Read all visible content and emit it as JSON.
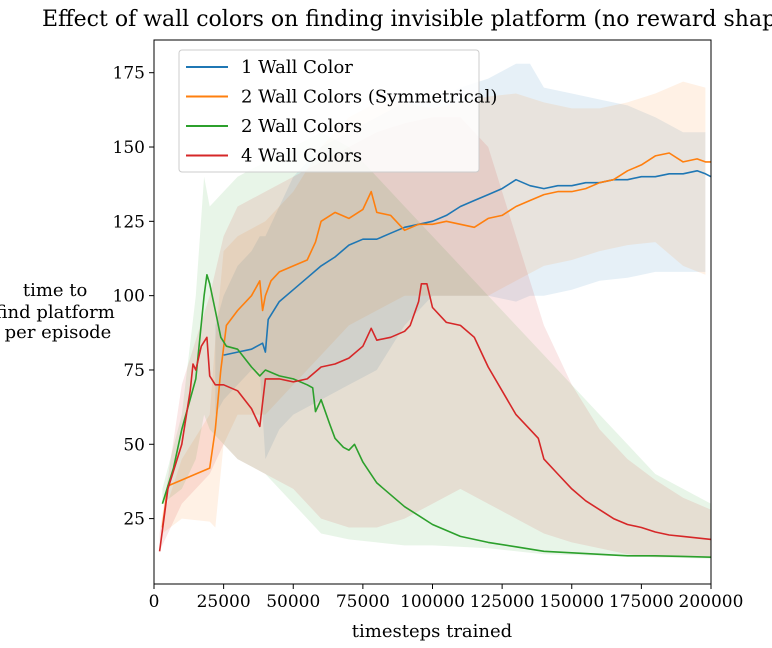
{
  "chart_data": {
    "type": "line",
    "title": "Effect of wall colors on finding invisible platform (no reward shaping)",
    "xlabel": "timesteps trained",
    "ylabel_lines": [
      "time to",
      "find platform",
      "per episode"
    ],
    "xlim": [
      0,
      200000
    ],
    "ylim": [
      3,
      186
    ],
    "xticks": [
      0,
      25000,
      50000,
      75000,
      100000,
      125000,
      150000,
      175000,
      200000
    ],
    "yticks": [
      25,
      50,
      75,
      100,
      125,
      150,
      175
    ],
    "grid": false,
    "legend_position": "top-left",
    "series": [
      {
        "name": "1 Wall Color",
        "color": "#1f77b4",
        "x": [
          25000,
          30000,
          35000,
          37000,
          39000,
          40000,
          41000,
          45000,
          50000,
          55000,
          60000,
          65000,
          70000,
          75000,
          80000,
          85000,
          90000,
          95000,
          100000,
          105000,
          110000,
          115000,
          120000,
          125000,
          130000,
          135000,
          140000,
          145000,
          150000,
          155000,
          160000,
          165000,
          170000,
          175000,
          180000,
          185000,
          190000,
          195000,
          198000,
          200000
        ],
        "y": [
          80,
          81,
          82,
          83,
          84,
          81,
          92,
          98,
          102,
          106,
          110,
          113,
          117,
          119,
          119,
          121,
          123,
          124,
          125,
          127,
          130,
          132,
          134,
          136,
          139,
          137,
          136,
          137,
          137,
          138,
          138,
          139,
          139,
          140,
          140,
          141,
          141,
          142,
          141,
          140
        ]
      },
      {
        "name": "2 Wall Colors (Symmetrical)",
        "color": "#ff7f0e",
        "x": [
          3000,
          5000,
          10000,
          15000,
          20000,
          22000,
          24000,
          26000,
          30000,
          35000,
          38000,
          39000,
          40000,
          42000,
          45000,
          50000,
          55000,
          58000,
          60000,
          65000,
          70000,
          75000,
          78000,
          80000,
          85000,
          90000,
          95000,
          100000,
          105000,
          110000,
          115000,
          120000,
          125000,
          130000,
          135000,
          140000,
          145000,
          150000,
          155000,
          160000,
          165000,
          170000,
          175000,
          180000,
          185000,
          190000,
          195000,
          198000,
          200000
        ],
        "y": [
          22,
          36,
          38,
          40,
          42,
          55,
          75,
          90,
          95,
          100,
          105,
          95,
          100,
          105,
          108,
          110,
          112,
          118,
          125,
          128,
          126,
          129,
          135,
          128,
          127,
          122,
          124,
          124,
          125,
          124,
          123,
          126,
          127,
          130,
          132,
          134,
          135,
          135,
          136,
          138,
          139,
          142,
          144,
          147,
          148,
          145,
          146,
          145,
          145
        ]
      },
      {
        "name": "2 Wall Colors",
        "color": "#2ca02c",
        "x": [
          3000,
          7000,
          10000,
          15000,
          18000,
          19000,
          20000,
          22000,
          24000,
          26000,
          30000,
          35000,
          38000,
          40000,
          45000,
          50000,
          55000,
          57000,
          58000,
          60000,
          63000,
          65000,
          68000,
          70000,
          72000,
          75000,
          80000,
          85000,
          90000,
          95000,
          100000,
          110000,
          120000,
          130000,
          140000,
          150000,
          160000,
          170000,
          180000,
          190000,
          200000
        ],
        "y": [
          30,
          42,
          55,
          72,
          100,
          107,
          104,
          95,
          86,
          83,
          82,
          76,
          73,
          75,
          73,
          72,
          70,
          69,
          61,
          65,
          57,
          52,
          49,
          48,
          50,
          44,
          37,
          33,
          29,
          26,
          23,
          19,
          17,
          15.5,
          14,
          13.5,
          13,
          12.5,
          12.5,
          12.3,
          12
        ]
      },
      {
        "name": "4 Wall Colors",
        "color": "#d62728",
        "x": [
          2000,
          5000,
          10000,
          13000,
          14000,
          15000,
          17000,
          19000,
          20000,
          22000,
          25000,
          30000,
          35000,
          38000,
          40000,
          45000,
          50000,
          55000,
          60000,
          65000,
          70000,
          75000,
          78000,
          80000,
          85000,
          90000,
          92000,
          95000,
          96000,
          98000,
          100000,
          105000,
          110000,
          115000,
          118000,
          120000,
          125000,
          130000,
          135000,
          138000,
          140000,
          145000,
          150000,
          155000,
          160000,
          165000,
          170000,
          175000,
          180000,
          185000,
          190000,
          195000,
          200000
        ],
        "y": [
          14,
          35,
          50,
          68,
          77,
          75,
          83,
          86,
          73,
          70,
          70,
          68,
          62,
          56,
          72,
          72,
          71,
          72,
          76,
          77,
          79,
          83,
          89,
          85,
          86,
          88,
          90,
          98,
          104,
          104,
          96,
          91,
          90,
          86,
          80,
          76,
          68,
          60,
          55,
          52,
          45,
          40,
          35,
          31,
          28,
          25,
          23,
          22,
          20.5,
          19.5,
          19,
          18.5,
          18
        ]
      }
    ],
    "bands": [
      {
        "name": "1 Wall Color",
        "color": "#1f77b4",
        "x": [
          22000,
          25000,
          30000,
          35000,
          38000,
          40000,
          45000,
          50000,
          60000,
          70000,
          80000,
          90000,
          100000,
          110000,
          120000,
          130000,
          135000,
          140000,
          150000,
          160000,
          170000,
          180000,
          190000,
          198000
        ],
        "lower": [
          60,
          65,
          70,
          75,
          75,
          45,
          55,
          60,
          65,
          70,
          75,
          90,
          100,
          100,
          100,
          98,
          100,
          100,
          102,
          105,
          106,
          108,
          108,
          108
        ],
        "upper": [
          90,
          100,
          110,
          115,
          120,
          120,
          130,
          140,
          150,
          155,
          160,
          165,
          165,
          170,
          173,
          178,
          178,
          170,
          168,
          166,
          164,
          160,
          155,
          155
        ]
      },
      {
        "name": "2 Wall Colors (Symmetrical)",
        "color": "#ff7f0e",
        "x": [
          3000,
          10000,
          20000,
          22000,
          25000,
          30000,
          40000,
          50000,
          60000,
          70000,
          80000,
          90000,
          100000,
          110000,
          120000,
          130000,
          140000,
          150000,
          160000,
          170000,
          180000,
          190000,
          198000
        ],
        "lower": [
          20,
          25,
          24,
          22,
          50,
          60,
          60,
          70,
          80,
          90,
          95,
          100,
          100,
          100,
          100,
          105,
          110,
          112,
          115,
          117,
          118,
          110,
          107
        ],
        "upper": [
          25,
          45,
          60,
          85,
          115,
          120,
          125,
          135,
          150,
          160,
          165,
          165,
          163,
          165,
          167,
          168,
          165,
          163,
          163,
          165,
          168,
          172,
          170
        ]
      },
      {
        "name": "2 Wall Colors",
        "color": "#2ca02c",
        "x": [
          3000,
          10000,
          15000,
          18000,
          20000,
          25000,
          30000,
          40000,
          50000,
          60000,
          70000,
          80000,
          90000,
          100000,
          120000,
          140000,
          160000,
          180000,
          200000
        ],
        "lower": [
          30,
          35,
          45,
          60,
          55,
          50,
          45,
          40,
          30,
          20,
          18,
          17,
          16,
          16,
          15,
          13,
          12.5,
          12,
          11.5
        ],
        "upper": [
          35,
          60,
          100,
          140,
          130,
          135,
          140,
          145,
          150,
          155,
          150,
          140,
          130,
          120,
          100,
          80,
          60,
          40,
          30
        ]
      },
      {
        "name": "4 Wall Colors",
        "color": "#d62728",
        "x": [
          2000,
          10000,
          20000,
          25000,
          30000,
          40000,
          50000,
          60000,
          70000,
          80000,
          90000,
          100000,
          110000,
          120000,
          130000,
          140000,
          150000,
          160000,
          170000,
          180000,
          190000,
          200000
        ],
        "lower": [
          14,
          30,
          40,
          50,
          45,
          40,
          35,
          25,
          22,
          22,
          25,
          30,
          35,
          30,
          25,
          20,
          17,
          15,
          13,
          12,
          12,
          12
        ],
        "upper": [
          20,
          70,
          100,
          120,
          130,
          135,
          140,
          145,
          150,
          155,
          158,
          160,
          160,
          150,
          120,
          90,
          70,
          55,
          45,
          38,
          32,
          28
        ]
      }
    ]
  }
}
